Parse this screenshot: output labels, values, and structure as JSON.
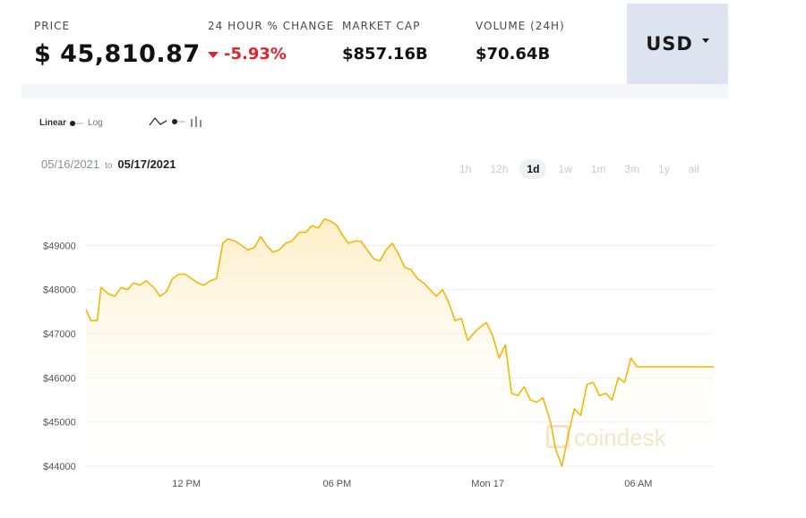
{
  "stats": {
    "price_label": "PRICE",
    "price_value": "$ 45,810.87",
    "change_label": "24 HOUR % CHANGE",
    "change_value": "-5.93%",
    "mcap_label": "MARKET CAP",
    "mcap_value": "$857.16B",
    "volume_label": "VOLUME (24H)",
    "volume_value": "$70.64B"
  },
  "currency": "USD",
  "toggles": {
    "linear": "Linear",
    "log": "Log"
  },
  "dates": {
    "from": "05/16/2021",
    "to_word": "to",
    "to": "05/17/2021"
  },
  "ranges": [
    "1h",
    "12h",
    "1d",
    "1w",
    "1m",
    "3m",
    "1y",
    "all"
  ],
  "active_range": "1d",
  "watermark": "coindesk",
  "colors": {
    "line": "#f2b705",
    "fill_top": "#fdeec6",
    "negative": "#e0242b",
    "currency_bg": "#dde3ef"
  },
  "chart_data": {
    "type": "area",
    "y_tick_labels": [
      "$44000",
      "$45000",
      "$46000",
      "$47000",
      "$48000",
      "$49000"
    ],
    "y_ticks": [
      44000,
      45000,
      46000,
      47000,
      48000,
      49000
    ],
    "x_tick_labels": [
      "12 PM",
      "06 PM",
      "Mon 17",
      "06 AM"
    ],
    "x_ticks": [
      8,
      14,
      20,
      26
    ],
    "ylim": [
      43900,
      49900
    ],
    "xlim": [
      4,
      29
    ],
    "grid": true,
    "series": [
      {
        "x": [
          4.0,
          4.2,
          4.45,
          4.6,
          4.9,
          5.15,
          5.4,
          5.65,
          5.9,
          6.15,
          6.4,
          6.7,
          6.95,
          7.2,
          7.45,
          7.7,
          7.95,
          8.2,
          8.45,
          8.7,
          8.95,
          9.2,
          9.45,
          9.65,
          9.95,
          10.2,
          10.45,
          10.7,
          10.95,
          11.2,
          11.45,
          11.7,
          11.95,
          12.2,
          12.5,
          12.75,
          13.0,
          13.25,
          13.5,
          13.75,
          14.0,
          14.2,
          14.45,
          14.7,
          14.95,
          15.2,
          15.45,
          15.7,
          15.95,
          16.2,
          16.45,
          16.7,
          16.95,
          17.2,
          17.45,
          17.7,
          17.95,
          18.2,
          18.45,
          18.7,
          18.95,
          19.2,
          19.5,
          19.7,
          19.95,
          20.2,
          20.45,
          20.7,
          20.95,
          21.2,
          21.45,
          21.7,
          21.95,
          22.2,
          22.5,
          22.7,
          22.95,
          23.2,
          23.45,
          23.7,
          23.95,
          24.2,
          24.45,
          24.7,
          24.95,
          25.2,
          25.45,
          25.7,
          25.95,
          26.2,
          26.45,
          26.7,
          26.95,
          27.2,
          27.45,
          27.7,
          28.0,
          28.3,
          28.5,
          28.75,
          29.0
        ],
        "y": [
          47550,
          47300,
          47300,
          48050,
          47900,
          47850,
          48050,
          48000,
          48150,
          48100,
          48200,
          48050,
          47850,
          47950,
          48250,
          48350,
          48350,
          48250,
          48150,
          48100,
          48200,
          48250,
          49050,
          49150,
          49100,
          49000,
          48900,
          48950,
          49200,
          49000,
          48850,
          48900,
          49050,
          49100,
          49300,
          49300,
          49450,
          49400,
          49600,
          49550,
          49450,
          49250,
          49050,
          49100,
          49100,
          48900,
          48700,
          48650,
          48900,
          49050,
          48800,
          48500,
          48450,
          48250,
          48150,
          48000,
          47850,
          48000,
          47700,
          47300,
          47350,
          46850,
          47050,
          47150,
          47250,
          46950,
          46450,
          46750,
          45650,
          45600,
          45800,
          45500,
          45450,
          45550,
          45000,
          44400,
          44000,
          44700,
          45300,
          45150,
          45850,
          45900,
          45600,
          45650,
          45500,
          46000,
          45900,
          46450,
          46250,
          46250,
          46250,
          46250,
          46250,
          46250,
          46250,
          46250,
          46250,
          46250,
          46250,
          46250,
          46250
        ]
      }
    ]
  }
}
